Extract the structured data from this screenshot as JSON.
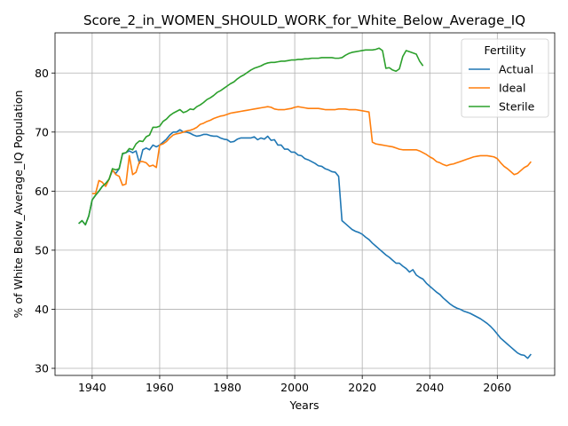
{
  "chart_data": {
    "type": "line",
    "title": "Score_2_in_WOMEN_SHOULD_WORK_for_White_Below_Average_IQ",
    "xlabel": "Years",
    "ylabel": "% of White Below_Average_IQ Population",
    "xlim": [
      1929,
      2077
    ],
    "ylim": [
      28.8,
      86.8
    ],
    "xticks": [
      1940,
      1960,
      1980,
      2000,
      2020,
      2040,
      2060
    ],
    "yticks": [
      30,
      40,
      50,
      60,
      70,
      80
    ],
    "grid": true,
    "legend": {
      "title": "Fertility",
      "position": "top-right"
    },
    "series": [
      {
        "name": "Actual",
        "color": "#1f77b4",
        "x": [
          1936,
          1937,
          1938,
          1939,
          1940,
          1941,
          1942,
          1943,
          1944,
          1945,
          1946,
          1947,
          1948,
          1949,
          1950,
          1951,
          1952,
          1953,
          1954,
          1955,
          1956,
          1957,
          1958,
          1959,
          1960,
          1961,
          1962,
          1963,
          1964,
          1965,
          1966,
          1967,
          1968,
          1969,
          1970,
          1971,
          1972,
          1973,
          1974,
          1975,
          1976,
          1977,
          1978,
          1979,
          1980,
          1981,
          1982,
          1983,
          1984,
          1985,
          1986,
          1987,
          1988,
          1989,
          1990,
          1991,
          1992,
          1993,
          1994,
          1995,
          1996,
          1997,
          1998,
          1999,
          2000,
          2001,
          2002,
          2003,
          2004,
          2005,
          2006,
          2007,
          2008,
          2009,
          2010,
          2011,
          2012,
          2013,
          2014,
          2015,
          2016,
          2017,
          2018,
          2019,
          2020,
          2021,
          2022,
          2023,
          2024,
          2025,
          2026,
          2027,
          2028,
          2029,
          2030,
          2031,
          2032,
          2033,
          2034,
          2035,
          2036,
          2037,
          2038,
          2039,
          2040,
          2041,
          2042,
          2043,
          2044,
          2045,
          2046,
          2047,
          2048,
          2049,
          2050,
          2051,
          2052,
          2053,
          2054,
          2055,
          2056,
          2057,
          2058,
          2059,
          2060,
          2061,
          2062,
          2063,
          2064,
          2065,
          2066,
          2067,
          2068,
          2069,
          2070
        ],
        "values": [
          54.5,
          55.0,
          54.3,
          55.8,
          58.5,
          59.3,
          60.0,
          60.8,
          61.3,
          62.0,
          63.5,
          63.0,
          63.8,
          66.3,
          66.5,
          66.8,
          66.5,
          66.8,
          64.7,
          67.0,
          67.3,
          67.0,
          67.8,
          67.5,
          67.8,
          68.3,
          68.8,
          69.5,
          70.0,
          70.0,
          70.4,
          70.0,
          70.0,
          69.8,
          69.5,
          69.3,
          69.4,
          69.6,
          69.6,
          69.4,
          69.3,
          69.3,
          69.0,
          68.8,
          68.7,
          68.3,
          68.4,
          68.8,
          69.0,
          69.0,
          69.0,
          69.0,
          69.2,
          68.7,
          69.0,
          68.8,
          69.3,
          68.6,
          68.7,
          67.8,
          67.8,
          67.1,
          67.1,
          66.6,
          66.6,
          66.1,
          66.0,
          65.5,
          65.3,
          65.0,
          64.7,
          64.3,
          64.2,
          63.8,
          63.6,
          63.3,
          63.2,
          62.5,
          55.0,
          54.5,
          54.0,
          53.5,
          53.2,
          53.0,
          52.7,
          52.2,
          51.8,
          51.2,
          50.7,
          50.2,
          49.7,
          49.2,
          48.8,
          48.3,
          47.8,
          47.8,
          47.3,
          46.9,
          46.3,
          46.7,
          45.8,
          45.4,
          45.1,
          44.4,
          43.9,
          43.4,
          42.9,
          42.5,
          41.9,
          41.4,
          40.9,
          40.5,
          40.2,
          40.0,
          39.7,
          39.5,
          39.3,
          39.0,
          38.7,
          38.4,
          38.0,
          37.6,
          37.1,
          36.5,
          35.8,
          35.1,
          34.6,
          34.1,
          33.6,
          33.1,
          32.6,
          32.3,
          32.2,
          31.7,
          32.4
        ]
      },
      {
        "name": "Ideal",
        "color": "#ff7f0e",
        "x": [
          1940,
          1941,
          1942,
          1943,
          1944,
          1945,
          1946,
          1947,
          1948,
          1949,
          1950,
          1951,
          1952,
          1953,
          1954,
          1955,
          1956,
          1957,
          1958,
          1959,
          1960,
          1961,
          1962,
          1963,
          1964,
          1965,
          1966,
          1967,
          1968,
          1969,
          1970,
          1971,
          1972,
          1973,
          1974,
          1975,
          1976,
          1977,
          1978,
          1979,
          1980,
          1981,
          1982,
          1983,
          1984,
          1985,
          1986,
          1987,
          1988,
          1989,
          1990,
          1991,
          1992,
          1993,
          1994,
          1995,
          1996,
          1997,
          1998,
          1999,
          2000,
          2001,
          2002,
          2003,
          2004,
          2005,
          2006,
          2007,
          2008,
          2009,
          2010,
          2011,
          2012,
          2013,
          2014,
          2015,
          2016,
          2017,
          2018,
          2019,
          2020,
          2021,
          2022,
          2023,
          2024,
          2025,
          2026,
          2027,
          2028,
          2029,
          2030,
          2031,
          2032,
          2033,
          2034,
          2035,
          2036,
          2037,
          2038,
          2039,
          2040,
          2041,
          2042,
          2043,
          2044,
          2045,
          2046,
          2047,
          2048,
          2049,
          2050,
          2051,
          2052,
          2053,
          2054,
          2055,
          2056,
          2057,
          2058,
          2059,
          2060,
          2061,
          2062,
          2063,
          2064,
          2065,
          2066,
          2067,
          2068,
          2069,
          2070
        ],
        "values": [
          59.6,
          59.6,
          61.8,
          61.5,
          60.8,
          62.0,
          63.6,
          62.8,
          62.5,
          61.0,
          61.2,
          66.0,
          62.8,
          63.2,
          65.0,
          65.0,
          64.8,
          64.2,
          64.4,
          64.0,
          67.8,
          68.0,
          68.4,
          69.0,
          69.5,
          69.7,
          69.8,
          70.0,
          70.2,
          70.3,
          70.5,
          70.8,
          71.3,
          71.5,
          71.8,
          72.0,
          72.3,
          72.5,
          72.7,
          72.8,
          73.0,
          73.2,
          73.3,
          73.4,
          73.5,
          73.6,
          73.7,
          73.8,
          73.9,
          74.0,
          74.1,
          74.2,
          74.3,
          74.2,
          73.9,
          73.8,
          73.8,
          73.8,
          73.9,
          74.0,
          74.2,
          74.3,
          74.2,
          74.1,
          74.0,
          74.0,
          74.0,
          74.0,
          73.9,
          73.8,
          73.8,
          73.8,
          73.8,
          73.9,
          73.9,
          73.9,
          73.8,
          73.8,
          73.8,
          73.7,
          73.6,
          73.5,
          73.4,
          68.3,
          68.0,
          67.9,
          67.8,
          67.7,
          67.6,
          67.5,
          67.3,
          67.1,
          67.0,
          67.0,
          67.0,
          67.0,
          67.0,
          66.8,
          66.5,
          66.2,
          65.8,
          65.5,
          65.0,
          64.8,
          64.5,
          64.3,
          64.5,
          64.6,
          64.8,
          65.0,
          65.2,
          65.4,
          65.6,
          65.8,
          65.9,
          66.0,
          66.0,
          66.0,
          65.9,
          65.8,
          65.5,
          64.8,
          64.2,
          63.8,
          63.3,
          62.8,
          63.0,
          63.5,
          64.0,
          64.3,
          65.0
        ],
        "ys_note": ""
      },
      {
        "name": "Sterile",
        "color": "#2ca02c",
        "x": [
          1936,
          1937,
          1938,
          1939,
          1940,
          1941,
          1942,
          1943,
          1944,
          1945,
          1946,
          1947,
          1948,
          1949,
          1950,
          1951,
          1952,
          1953,
          1954,
          1955,
          1956,
          1957,
          1958,
          1959,
          1960,
          1961,
          1962,
          1963,
          1964,
          1965,
          1966,
          1967,
          1968,
          1969,
          1970,
          1971,
          1972,
          1973,
          1974,
          1975,
          1976,
          1977,
          1978,
          1979,
          1980,
          1981,
          1982,
          1983,
          1984,
          1985,
          1986,
          1987,
          1988,
          1989,
          1990,
          1991,
          1992,
          1993,
          1994,
          1995,
          1996,
          1997,
          1998,
          1999,
          2000,
          2001,
          2002,
          2003,
          2004,
          2005,
          2006,
          2007,
          2008,
          2009,
          2010,
          2011,
          2012,
          2013,
          2014,
          2015,
          2016,
          2017,
          2018,
          2019,
          2020,
          2021,
          2022,
          2023,
          2024,
          2025,
          2026,
          2027,
          2028,
          2029,
          2030,
          2031,
          2032,
          2033,
          2034,
          2035,
          2036,
          2037,
          2038
        ],
        "values": [
          54.5,
          55.0,
          54.3,
          55.8,
          58.5,
          59.3,
          60.0,
          60.8,
          61.3,
          62.0,
          63.8,
          63.6,
          63.8,
          66.4,
          66.5,
          67.2,
          67.0,
          68.0,
          68.5,
          68.4,
          69.2,
          69.5,
          70.8,
          70.8,
          71.0,
          71.8,
          72.2,
          72.8,
          73.2,
          73.5,
          73.8,
          73.3,
          73.5,
          73.9,
          73.8,
          74.3,
          74.6,
          75.0,
          75.5,
          75.8,
          76.2,
          76.7,
          77.0,
          77.4,
          77.8,
          78.2,
          78.5,
          79.0,
          79.4,
          79.7,
          80.1,
          80.5,
          80.8,
          81.0,
          81.2,
          81.5,
          81.7,
          81.8,
          81.8,
          81.9,
          82.0,
          82.0,
          82.1,
          82.2,
          82.2,
          82.3,
          82.3,
          82.4,
          82.4,
          82.5,
          82.5,
          82.5,
          82.6,
          82.6,
          82.6,
          82.6,
          82.5,
          82.5,
          82.6,
          83.0,
          83.3,
          83.5,
          83.6,
          83.7,
          83.8,
          83.9,
          83.9,
          83.9,
          84.0,
          84.2,
          83.8,
          80.8,
          80.9,
          80.5,
          80.3,
          80.7,
          82.8,
          83.8,
          83.6,
          83.4,
          83.2,
          82.0,
          81.2
        ]
      }
    ]
  }
}
